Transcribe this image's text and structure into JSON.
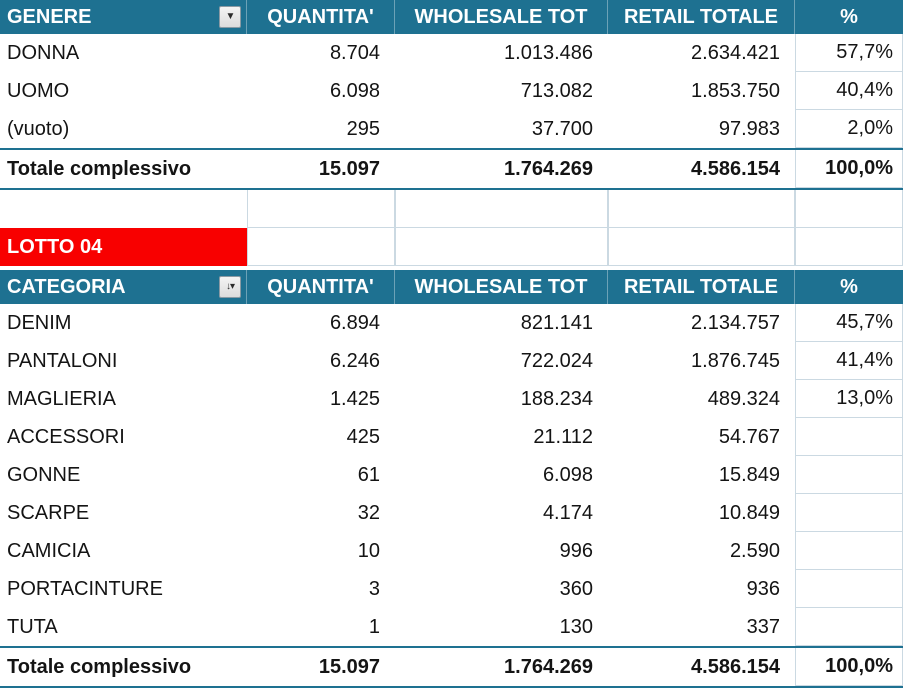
{
  "colors": {
    "header_bg": "#1E7191",
    "banner_red": "#F80000",
    "total_border": "#1E7191",
    "cell_border": "#CBD9E2"
  },
  "icons": {
    "dropdown_arrow": "▼",
    "sort_filter": "↓▾"
  },
  "banner": {
    "label": "LOTTO 04"
  },
  "genere_table": {
    "header": {
      "col1": "GENERE",
      "col2": "QUANTITA'",
      "col3": "WHOLESALE TOT",
      "col4": "RETAIL TOTALE",
      "col5": "%"
    },
    "rows": [
      {
        "label": "DONNA",
        "qty": "8.704",
        "wholesale": "1.013.486",
        "retail": "2.634.421",
        "pct": "57,7%"
      },
      {
        "label": "UOMO",
        "qty": "6.098",
        "wholesale": "713.082",
        "retail": "1.853.750",
        "pct": "40,4%"
      },
      {
        "label": "(vuoto)",
        "qty": "295",
        "wholesale": "37.700",
        "retail": "97.983",
        "pct": "2,0%"
      }
    ],
    "total": {
      "label": "Totale complessivo",
      "qty": "15.097",
      "wholesale": "1.764.269",
      "retail": "4.586.154",
      "pct": "100,0%"
    }
  },
  "categoria_table": {
    "header": {
      "col1": "CATEGORIA",
      "col2": "QUANTITA'",
      "col3": "WHOLESALE TOT",
      "col4": "RETAIL TOTALE",
      "col5": "%"
    },
    "rows": [
      {
        "label": "DENIM",
        "qty": "6.894",
        "wholesale": "821.141",
        "retail": "2.134.757",
        "pct": "45,7%"
      },
      {
        "label": "PANTALONI",
        "qty": "6.246",
        "wholesale": "722.024",
        "retail": "1.876.745",
        "pct": "41,4%"
      },
      {
        "label": "MAGLIERIA",
        "qty": "1.425",
        "wholesale": "188.234",
        "retail": "489.324",
        "pct": "13,0%"
      },
      {
        "label": "ACCESSORI",
        "qty": "425",
        "wholesale": "21.112",
        "retail": "54.767",
        "pct": ""
      },
      {
        "label": "GONNE",
        "qty": "61",
        "wholesale": "6.098",
        "retail": "15.849",
        "pct": ""
      },
      {
        "label": "SCARPE",
        "qty": "32",
        "wholesale": "4.174",
        "retail": "10.849",
        "pct": ""
      },
      {
        "label": "CAMICIA",
        "qty": "10",
        "wholesale": "996",
        "retail": "2.590",
        "pct": ""
      },
      {
        "label": "PORTACINTURE",
        "qty": "3",
        "wholesale": "360",
        "retail": "936",
        "pct": ""
      },
      {
        "label": "TUTA",
        "qty": "1",
        "wholesale": "130",
        "retail": "337",
        "pct": ""
      }
    ],
    "total": {
      "label": "Totale complessivo",
      "qty": "15.097",
      "wholesale": "1.764.269",
      "retail": "4.586.154",
      "pct": "100,0%"
    }
  }
}
